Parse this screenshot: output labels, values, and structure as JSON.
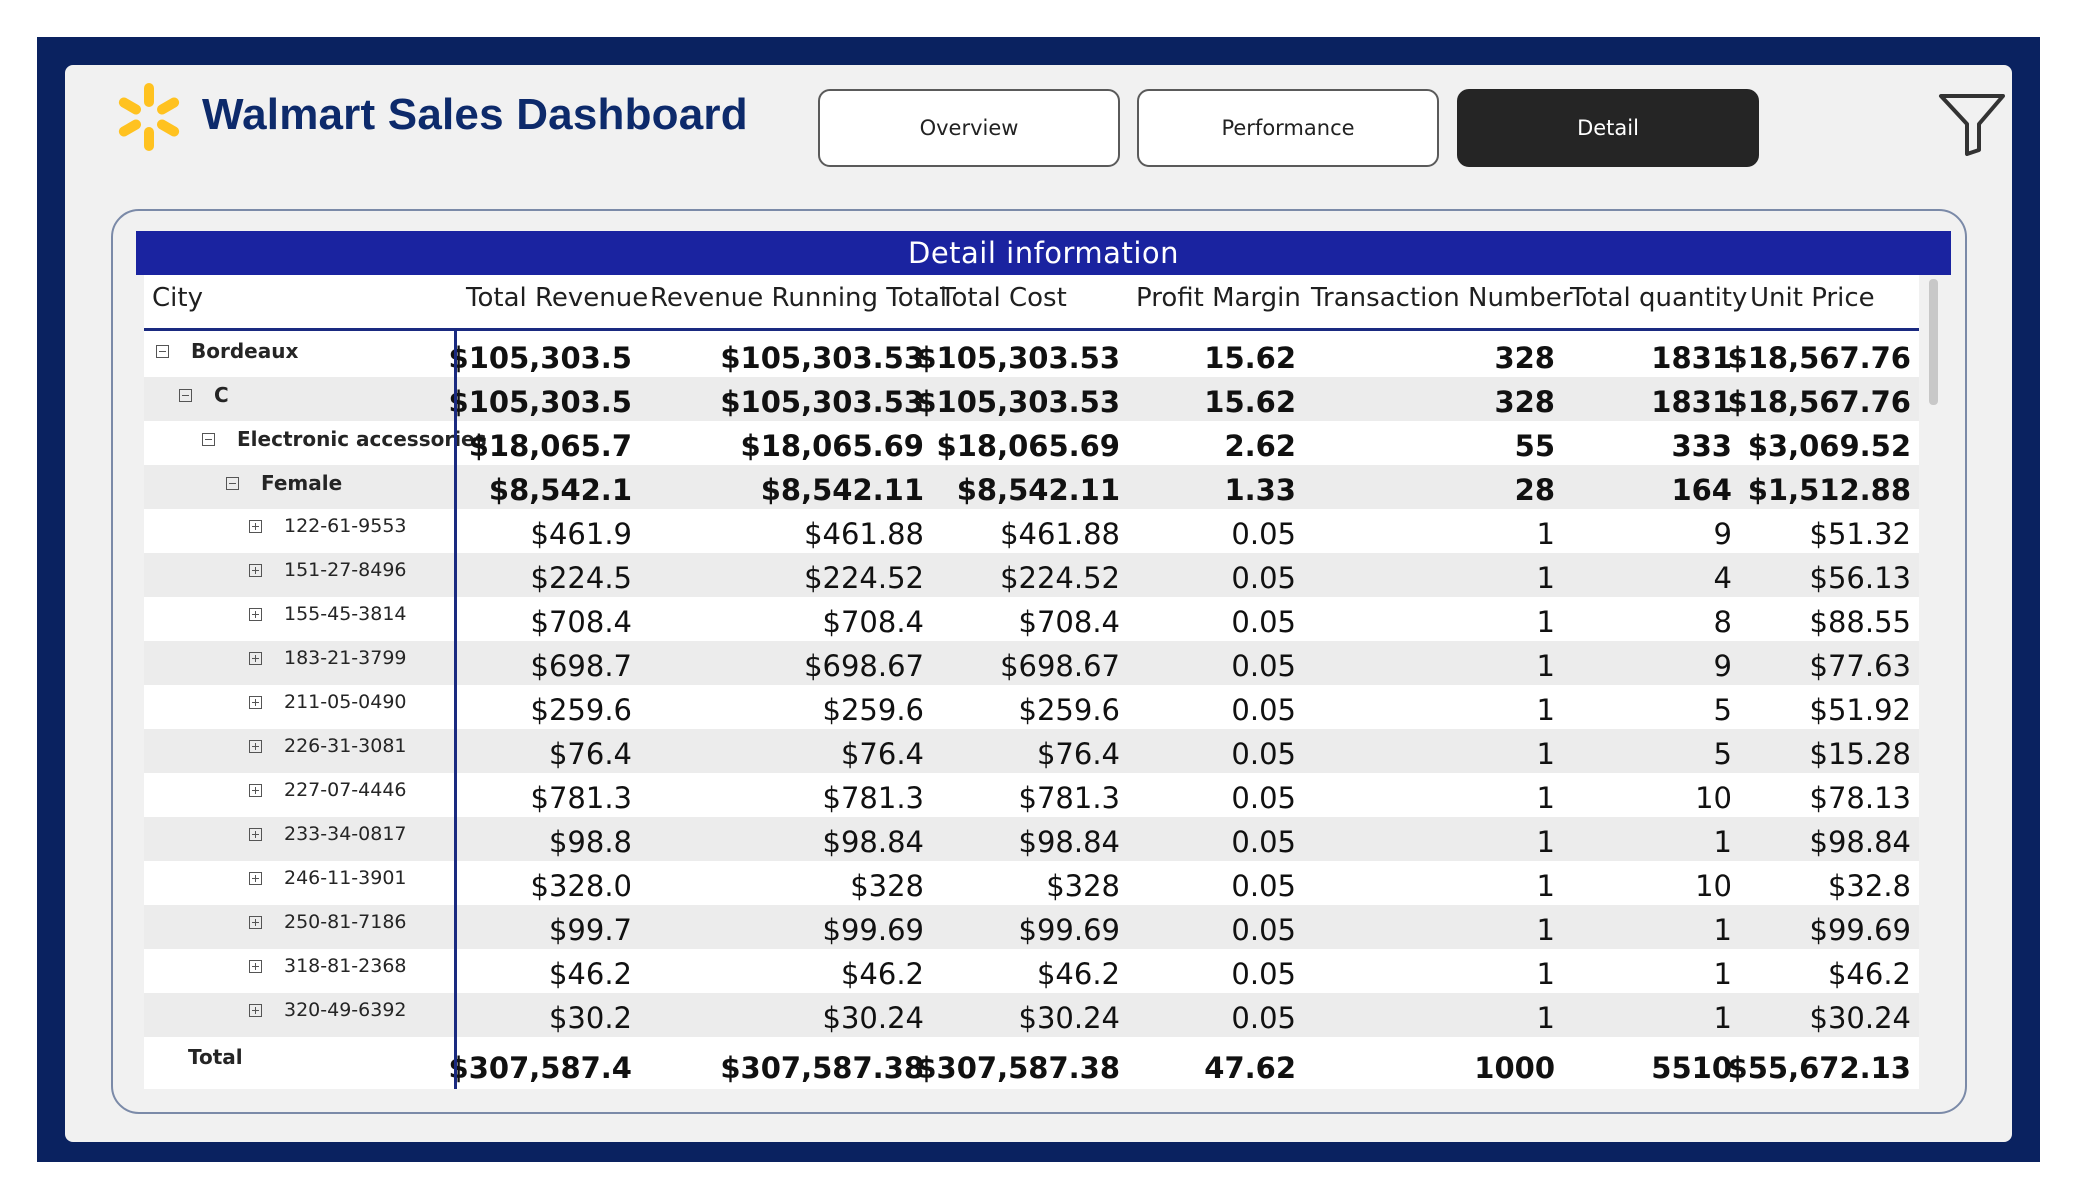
{
  "header": {
    "title": "Walmart Sales Dashboard",
    "tabs": [
      {
        "label": "Overview",
        "active": false
      },
      {
        "label": "Performance",
        "active": false
      },
      {
        "label": "Detail",
        "active": true
      }
    ],
    "filter_icon": "filter-icon"
  },
  "colors": {
    "frame": "#0a2260",
    "banner": "#1a23a0",
    "logo": "#ffc220",
    "title": "#0d2a6b"
  },
  "table": {
    "title": "Detail information",
    "columns": [
      "City",
      "Total Revenue",
      "Revenue Running Total",
      "Total Cost",
      "Profit Margin",
      "Transaction Number",
      "Total quantity",
      "Unit Price"
    ],
    "rows": [
      {
        "level": 0,
        "label": "Bordeaux",
        "expander": "minus",
        "bold": true,
        "values": [
          "$105,303.5",
          "$105,303.53",
          "$105,303.53",
          "15.62",
          "328",
          "1831",
          "$18,567.76"
        ]
      },
      {
        "level": 1,
        "label": "C",
        "expander": "minus",
        "bold": true,
        "values": [
          "$105,303.5",
          "$105,303.53",
          "$105,303.53",
          "15.62",
          "328",
          "1831",
          "$18,567.76"
        ]
      },
      {
        "level": 2,
        "label": "Electronic accessories",
        "expander": "minus",
        "bold": true,
        "values": [
          "$18,065.7",
          "$18,065.69",
          "$18,065.69",
          "2.62",
          "55",
          "333",
          "$3,069.52"
        ]
      },
      {
        "level": 3,
        "label": "Female",
        "expander": "minus",
        "bold": true,
        "values": [
          "$8,542.1",
          "$8,542.11",
          "$8,542.11",
          "1.33",
          "28",
          "164",
          "$1,512.88"
        ]
      },
      {
        "level": 4,
        "label": "122-61-9553",
        "expander": "plus",
        "bold": false,
        "values": [
          "$461.9",
          "$461.88",
          "$461.88",
          "0.05",
          "1",
          "9",
          "$51.32"
        ]
      },
      {
        "level": 4,
        "label": "151-27-8496",
        "expander": "plus",
        "bold": false,
        "values": [
          "$224.5",
          "$224.52",
          "$224.52",
          "0.05",
          "1",
          "4",
          "$56.13"
        ]
      },
      {
        "level": 4,
        "label": "155-45-3814",
        "expander": "plus",
        "bold": false,
        "values": [
          "$708.4",
          "$708.4",
          "$708.4",
          "0.05",
          "1",
          "8",
          "$88.55"
        ]
      },
      {
        "level": 4,
        "label": "183-21-3799",
        "expander": "plus",
        "bold": false,
        "values": [
          "$698.7",
          "$698.67",
          "$698.67",
          "0.05",
          "1",
          "9",
          "$77.63"
        ]
      },
      {
        "level": 4,
        "label": "211-05-0490",
        "expander": "plus",
        "bold": false,
        "values": [
          "$259.6",
          "$259.6",
          "$259.6",
          "0.05",
          "1",
          "5",
          "$51.92"
        ]
      },
      {
        "level": 4,
        "label": "226-31-3081",
        "expander": "plus",
        "bold": false,
        "values": [
          "$76.4",
          "$76.4",
          "$76.4",
          "0.05",
          "1",
          "5",
          "$15.28"
        ]
      },
      {
        "level": 4,
        "label": "227-07-4446",
        "expander": "plus",
        "bold": false,
        "values": [
          "$781.3",
          "$781.3",
          "$781.3",
          "0.05",
          "1",
          "10",
          "$78.13"
        ]
      },
      {
        "level": 4,
        "label": "233-34-0817",
        "expander": "plus",
        "bold": false,
        "values": [
          "$98.8",
          "$98.84",
          "$98.84",
          "0.05",
          "1",
          "1",
          "$98.84"
        ]
      },
      {
        "level": 4,
        "label": "246-11-3901",
        "expander": "plus",
        "bold": false,
        "values": [
          "$328.0",
          "$328",
          "$328",
          "0.05",
          "1",
          "10",
          "$32.8"
        ]
      },
      {
        "level": 4,
        "label": "250-81-7186",
        "expander": "plus",
        "bold": false,
        "values": [
          "$99.7",
          "$99.69",
          "$99.69",
          "0.05",
          "1",
          "1",
          "$99.69"
        ]
      },
      {
        "level": 4,
        "label": "318-81-2368",
        "expander": "plus",
        "bold": false,
        "values": [
          "$46.2",
          "$46.2",
          "$46.2",
          "0.05",
          "1",
          "1",
          "$46.2"
        ]
      },
      {
        "level": 4,
        "label": "320-49-6392",
        "expander": "plus",
        "bold": false,
        "values": [
          "$30.2",
          "$30.24",
          "$30.24",
          "0.05",
          "1",
          "1",
          "$30.24"
        ]
      }
    ],
    "total": {
      "label": "Total",
      "values": [
        "$307,587.4",
        "$307,587.38",
        "$307,587.38",
        "47.62",
        "1000",
        "5510",
        "$55,672.13"
      ]
    }
  }
}
